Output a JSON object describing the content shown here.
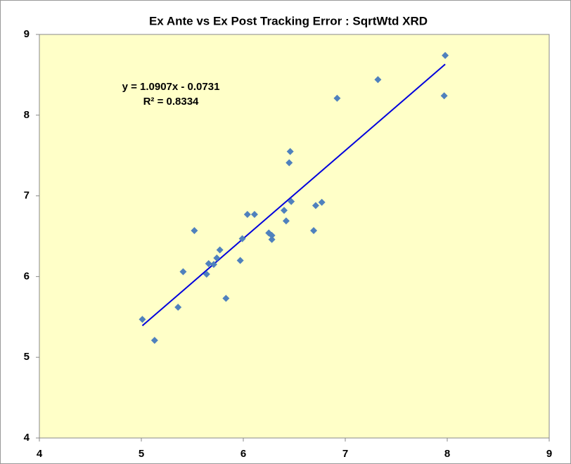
{
  "chart_data": {
    "type": "scatter",
    "title": "Ex Ante vs Ex Post Tracking Error : SqrtWtd XRD",
    "series": [
      {
        "color": "#4f81bd",
        "x": [
          5.01,
          5.13,
          5.36,
          5.41,
          5.52,
          5.64,
          5.66,
          5.71,
          5.74,
          5.77,
          5.83,
          5.97,
          5.99,
          6.04,
          6.11,
          6.25,
          6.28,
          6.28,
          6.4,
          6.42,
          6.45,
          6.46,
          6.47,
          6.69,
          6.71,
          6.77,
          6.92,
          7.32,
          7.97,
          7.98
        ],
        "values": [
          5.47,
          5.21,
          5.62,
          6.06,
          6.57,
          6.03,
          6.16,
          6.15,
          6.23,
          6.33,
          5.73,
          6.2,
          6.47,
          6.77,
          6.77,
          6.54,
          6.51,
          6.46,
          6.82,
          6.69,
          7.41,
          7.55,
          6.93,
          6.57,
          6.88,
          6.92,
          8.21,
          8.44,
          8.24,
          8.74
        ]
      }
    ],
    "trendline": {
      "color": "#0000dd",
      "slope": 1.0907,
      "intercept": -0.0731,
      "equation": "y = 1.0907x - 0.0731",
      "r_squared": "R² = 0.8334"
    },
    "xlim": [
      4,
      9
    ],
    "xticks": [
      4,
      5,
      6,
      7,
      8,
      9
    ],
    "ylim": [
      4,
      9
    ],
    "yticks": [
      4,
      5,
      6,
      7,
      8,
      9
    ],
    "background": "#ffffc8"
  }
}
